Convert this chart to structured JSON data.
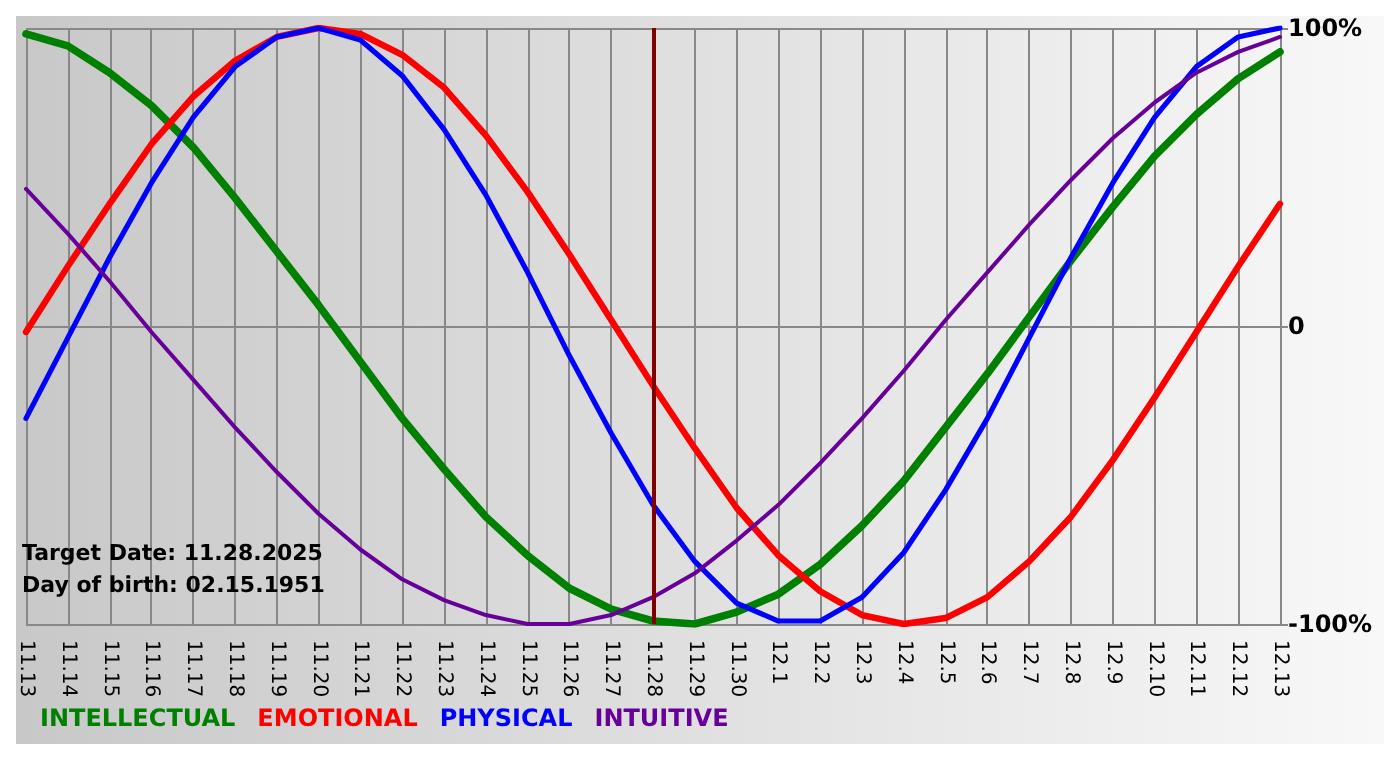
{
  "chart_data": {
    "type": "line",
    "categories": [
      "11.13",
      "11.14",
      "11.15",
      "11.16",
      "11.17",
      "11.18",
      "11.19",
      "11.20",
      "11.21",
      "11.22",
      "11.23",
      "11.24",
      "11.25",
      "11.26",
      "11.27",
      "11.28",
      "11.29",
      "11.30",
      "12.1",
      "12.2",
      "12.3",
      "12.4",
      "12.5",
      "12.6",
      "12.7",
      "12.8",
      "12.9",
      "12.10",
      "12.11",
      "12.12",
      "12.13"
    ],
    "series": [
      {
        "name": "INTELLECTUAL",
        "color": "#008000",
        "values": [
          98,
          94,
          85,
          74,
          60,
          43,
          25,
          7,
          -12,
          -31,
          -48,
          -64,
          -77,
          -88,
          -95,
          -99,
          -100,
          -96,
          -90,
          -80,
          -67,
          -52,
          -34,
          -16,
          3,
          22,
          40,
          57,
          71,
          83,
          92
        ]
      },
      {
        "name": "EMOTIONAL",
        "color": "#ff0000",
        "values": [
          -2,
          20,
          41,
          61,
          77,
          89,
          97,
          100,
          98,
          91,
          80,
          64,
          45,
          24,
          2,
          -20,
          -41,
          -61,
          -77,
          -89,
          -97,
          -100,
          -98,
          -91,
          -79,
          -64,
          -45,
          -24,
          -2,
          20,
          41
        ]
      },
      {
        "name": "PHYSICAL",
        "color": "#0000ff",
        "values": [
          -31,
          -4,
          23,
          48,
          70,
          87,
          97,
          100,
          96,
          84,
          66,
          44,
          18,
          -10,
          -36,
          -60,
          -79,
          -93,
          -99,
          -99,
          -91,
          -76,
          -55,
          -31,
          -4,
          23,
          48,
          70,
          87,
          97,
          100
        ]
      },
      {
        "name": "INTUITIVE",
        "color": "#660099",
        "values": [
          46,
          31,
          15,
          -2,
          -18,
          -34,
          -49,
          -63,
          -75,
          -85,
          -92,
          -97,
          -100,
          -100,
          -97,
          -91,
          -83,
          -72,
          -60,
          -46,
          -31,
          -15,
          2,
          18,
          34,
          49,
          63,
          75,
          85,
          92,
          97
        ]
      }
    ],
    "ylim": [
      -100,
      100
    ],
    "yticks": [
      {
        "value": 100,
        "label": "100%"
      },
      0,
      {
        "value": -100,
        "label": "-100%"
      }
    ],
    "grid": true,
    "legend": "bottom left",
    "marker": "none",
    "line_style": "solid",
    "ref_lines": [
      {
        "axis": "x",
        "value": "11.28",
        "color": "#800000"
      }
    ],
    "annotations": [
      "Target Date: 11.28.2025",
      "Day of birth: 02.15.1951"
    ]
  }
}
